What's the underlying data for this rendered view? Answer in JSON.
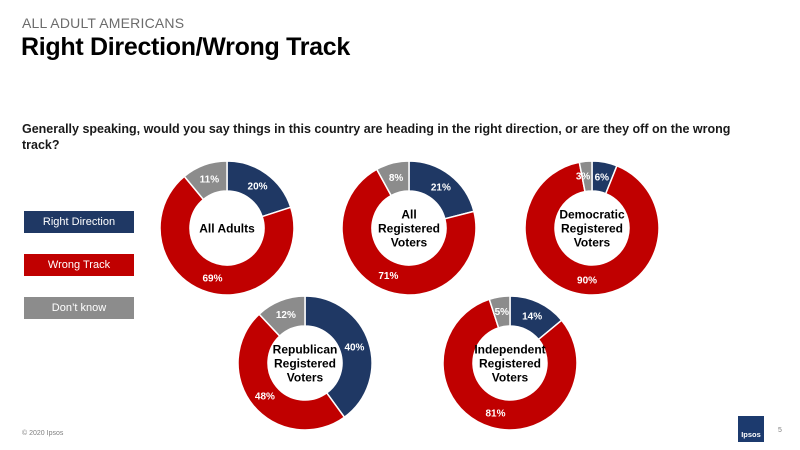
{
  "header": {
    "kicker": "ALL ADULT AMERICANS",
    "title": "Right Direction/Wrong Track"
  },
  "question": "Generally speaking, would you say things in this country are heading in the right direction, or are they off on the wrong track?",
  "legend": [
    {
      "label": "Right Direction",
      "color": "#1f3864"
    },
    {
      "label": "Wrong Track",
      "color": "#c00000"
    },
    {
      "label": "Don’t know",
      "color": "#8c8c8c"
    }
  ],
  "chart_data": {
    "type": "pie",
    "variant": "donut",
    "categories": [
      "Right Direction",
      "Wrong Track",
      "Don’t know"
    ],
    "colors": [
      "#1f3864",
      "#c00000",
      "#8c8c8c"
    ],
    "groups": [
      {
        "name": "All Adults",
        "values": [
          20,
          69,
          11
        ],
        "labels": [
          "20%",
          "69%",
          "11%"
        ]
      },
      {
        "name": "All Registered Voters",
        "values": [
          21,
          71,
          8
        ],
        "labels": [
          "21%",
          "71%",
          "8%"
        ]
      },
      {
        "name": "Democratic Registered Voters",
        "values": [
          6,
          90,
          3
        ],
        "labels": [
          "6%",
          "90%",
          "3%"
        ]
      },
      {
        "name": "Republican Registered Voters",
        "values": [
          40,
          48,
          12
        ],
        "labels": [
          "40%",
          "48%",
          "12%"
        ]
      },
      {
        "name": "Independent Registered Voters",
        "values": [
          14,
          81,
          5
        ],
        "labels": [
          "14%",
          "81%",
          "5%"
        ]
      }
    ]
  },
  "footer": {
    "copyright": "© 2020 Ipsos",
    "logo_text": "Ipsos",
    "page_number": "5"
  }
}
